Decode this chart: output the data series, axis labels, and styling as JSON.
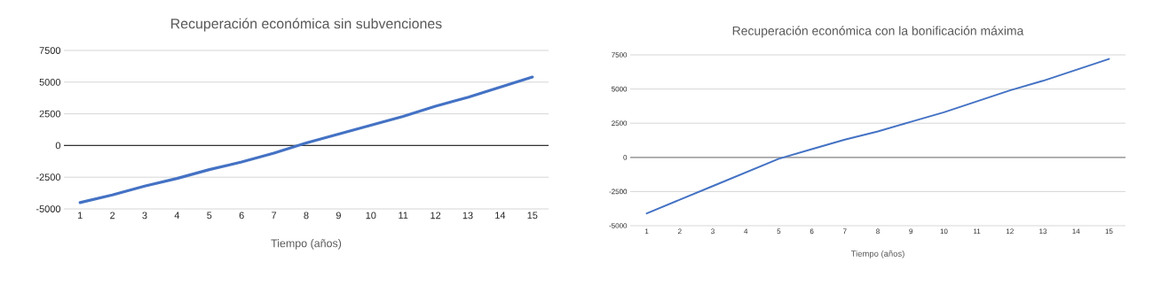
{
  "chart_data": [
    {
      "type": "line",
      "title": "Recuperación económica sin subvenciones",
      "xlabel": "Tiempo (años)",
      "categories": [
        "1",
        "2",
        "3",
        "4",
        "5",
        "6",
        "7",
        "8",
        "9",
        "10",
        "11",
        "12",
        "13",
        "14",
        "15"
      ],
      "values": [
        -4500,
        -3900,
        -3200,
        -2600,
        -1900,
        -1300,
        -600,
        200,
        900,
        1600,
        2300,
        3100,
        3800,
        4600,
        5400
      ],
      "color": "#4472c4",
      "ylim": [
        -5000,
        7500
      ],
      "yticks": [
        -5000,
        -2500,
        0,
        2500,
        5000,
        7500
      ],
      "grid": "y",
      "marker": "none"
    },
    {
      "type": "line",
      "title": "Recuperación económica con la bonificación máxima",
      "xlabel": "Tiempo (años)",
      "categories": [
        "1",
        "2",
        "3",
        "4",
        "5",
        "6",
        "7",
        "8",
        "9",
        "10",
        "11",
        "12",
        "13",
        "14",
        "15"
      ],
      "values": [
        -4100,
        -3100,
        -2100,
        -1100,
        -100,
        600,
        1300,
        1900,
        2600,
        3300,
        4100,
        4900,
        5600,
        6400,
        7200
      ],
      "color": "#4472c4",
      "ylim": [
        -5000,
        7500
      ],
      "yticks": [
        -5000,
        -2500,
        0,
        2500,
        5000,
        7500
      ],
      "grid": "y",
      "marker": "none"
    }
  ]
}
